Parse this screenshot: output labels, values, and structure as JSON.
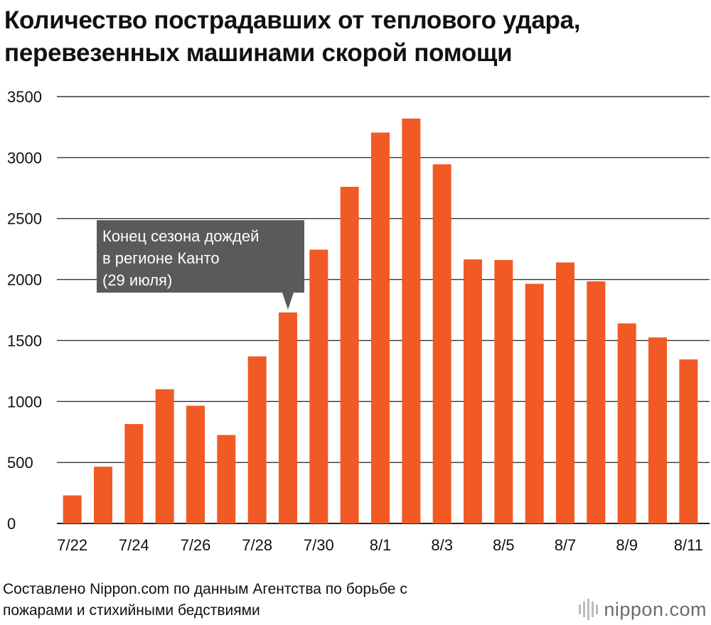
{
  "title": {
    "line1": "Количество пострадавших от теплового удара,",
    "line2": "перевезенных машинами скорой помощи"
  },
  "chart_data": {
    "type": "bar",
    "categories": [
      "7/22",
      "7/23",
      "7/24",
      "7/25",
      "7/26",
      "7/27",
      "7/28",
      "7/29",
      "7/30",
      "7/31",
      "8/1",
      "8/2",
      "8/3",
      "8/4",
      "8/5",
      "8/6",
      "8/7",
      "8/8",
      "8/9",
      "8/10",
      "8/11"
    ],
    "x_tick_labels": [
      "7/22",
      "7/24",
      "7/26",
      "7/28",
      "7/30",
      "8/1",
      "8/3",
      "8/5",
      "8/7",
      "8/9",
      "8/11"
    ],
    "values": [
      230,
      465,
      815,
      1100,
      965,
      725,
      1370,
      1730,
      2245,
      2760,
      3205,
      3320,
      2945,
      2165,
      2160,
      1965,
      2140,
      1985,
      1640,
      1525,
      1345
    ],
    "ylim": [
      0,
      3500
    ],
    "yticks": [
      0,
      500,
      1000,
      1500,
      2000,
      2500,
      3000,
      3500
    ],
    "bar_color": "#f15a24",
    "grid": true,
    "annotation": {
      "category": "7/29",
      "lines": [
        "Конец сезона дождей",
        "в регионе Канто",
        "(29 июля)"
      ],
      "background": "#5a5a5a",
      "text_color": "#ffffff"
    }
  },
  "source": {
    "line1": "Составлено Nippon.com по данным Агентства по борьбе с",
    "line2": "пожарами и стихийными бедствиями"
  },
  "logo": {
    "text": "nippon",
    "dot": ".",
    "suffix": "com"
  }
}
